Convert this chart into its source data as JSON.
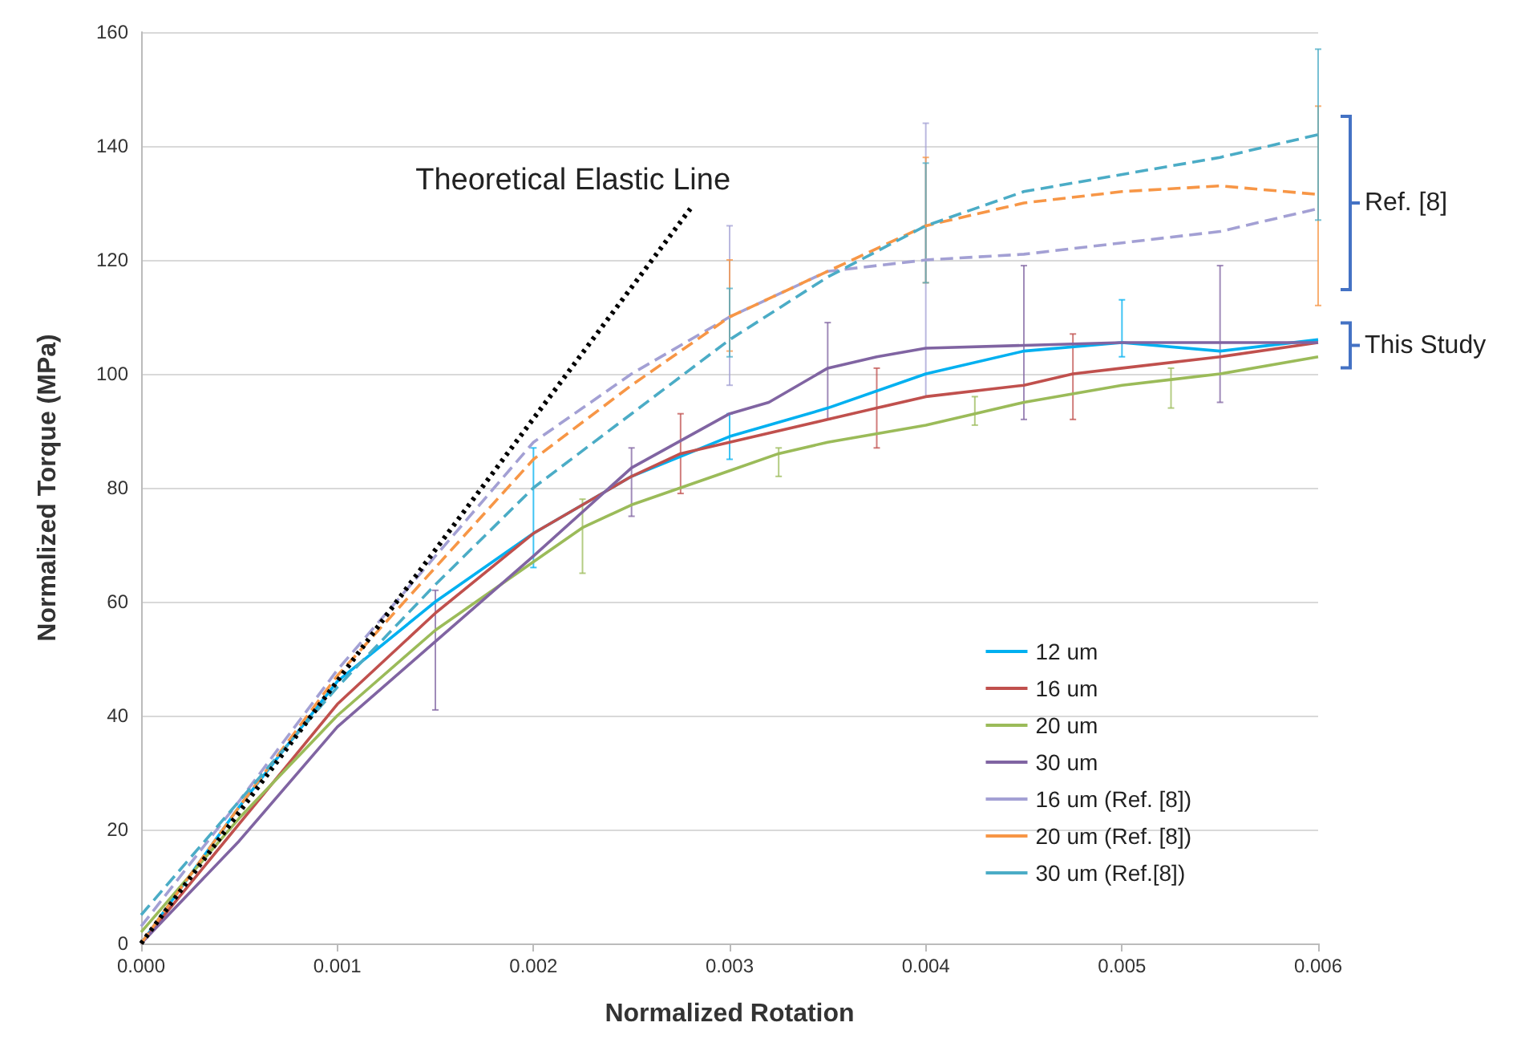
{
  "chart_data": {
    "type": "line",
    "xlabel": "Normalized Rotation",
    "ylabel": "Normalized Torque (MPa)",
    "xlim": [
      0,
      0.006
    ],
    "xticks": [
      {
        "value": 0,
        "label": "0.000"
      },
      {
        "value": 0.001,
        "label": "0.001"
      },
      {
        "value": 0.002,
        "label": "0.002"
      },
      {
        "value": 0.003,
        "label": "0.003"
      },
      {
        "value": 0.004,
        "label": "0.004"
      },
      {
        "value": 0.005,
        "label": "0.005"
      },
      {
        "value": 0.006,
        "label": "0.006"
      }
    ],
    "ylim": [
      0,
      160
    ],
    "yticks": [
      0,
      20,
      40,
      60,
      80,
      100,
      120,
      140,
      160
    ],
    "grid": "y",
    "legend": "bottom right",
    "marker": "none",
    "series": [
      {
        "name": "12 um",
        "color": "#00b0f0",
        "line_style": "solid",
        "x": [
          0,
          0.0005,
          0.001,
          0.0015,
          0.002,
          0.0025,
          0.003,
          0.0035,
          0.004,
          0.0045,
          0.005,
          0.0055,
          0.006
        ],
        "values": [
          0,
          24,
          46,
          60,
          72,
          82,
          89,
          94,
          100,
          104,
          105.5,
          104,
          106
        ],
        "errors": [
          null,
          null,
          null,
          null,
          [
            66,
            87
          ],
          null,
          [
            85,
            93
          ],
          null,
          null,
          null,
          [
            103,
            113
          ],
          null,
          null
        ]
      },
      {
        "name": "16 um",
        "color": "#c0504d",
        "line_style": "solid",
        "x": [
          0,
          0.0005,
          0.001,
          0.0015,
          0.002,
          0.0025,
          0.00275,
          0.003,
          0.0035,
          0.00375,
          0.004,
          0.0045,
          0.00475,
          0.005,
          0.0055,
          0.006
        ],
        "values": [
          0,
          21,
          42,
          58,
          72,
          82,
          86,
          88,
          92,
          94,
          96,
          98,
          100,
          101,
          103,
          105.5
        ],
        "errors": [
          null,
          null,
          null,
          null,
          null,
          null,
          [
            79,
            93
          ],
          null,
          null,
          [
            87,
            101
          ],
          null,
          null,
          [
            92,
            107
          ],
          null,
          null,
          null
        ]
      },
      {
        "name": "20 um",
        "color": "#9bbb59",
        "line_style": "solid",
        "x": [
          0,
          0.0005,
          0.001,
          0.0015,
          0.002,
          0.00225,
          0.0025,
          0.003,
          0.00325,
          0.0035,
          0.004,
          0.00425,
          0.0045,
          0.005,
          0.00525,
          0.0055,
          0.006
        ],
        "values": [
          2,
          22,
          40,
          55,
          67,
          73,
          77,
          83,
          86,
          88,
          91,
          93,
          95,
          98,
          99,
          100,
          103
        ],
        "errors": [
          null,
          null,
          null,
          null,
          null,
          [
            65,
            78
          ],
          null,
          null,
          [
            82,
            87
          ],
          null,
          null,
          [
            91,
            96
          ],
          null,
          null,
          [
            94,
            101
          ],
          null,
          null
        ]
      },
      {
        "name": "30 um",
        "color": "#8064a2",
        "line_style": "solid",
        "x": [
          0,
          0.0005,
          0.001,
          0.0015,
          0.002,
          0.0025,
          0.003,
          0.0032,
          0.0035,
          0.00375,
          0.004,
          0.0045,
          0.005,
          0.0055,
          0.006
        ],
        "values": [
          0,
          18,
          38,
          53,
          68,
          83.5,
          93,
          95,
          101,
          103,
          104.5,
          105,
          105.5,
          105.5,
          105.5
        ],
        "errors": [
          null,
          null,
          null,
          [
            41,
            62
          ],
          null,
          [
            75,
            87
          ],
          null,
          null,
          [
            92,
            109
          ],
          null,
          null,
          [
            92,
            119
          ],
          null,
          [
            95,
            119
          ],
          null
        ]
      },
      {
        "name": "16 um (Ref. [8])",
        "color": "#a3a0d4",
        "line_style": "dashed",
        "x": [
          0,
          0.0005,
          0.001,
          0.0015,
          0.002,
          0.0025,
          0.003,
          0.0035,
          0.004,
          0.0045,
          0.005,
          0.0055,
          0.006
        ],
        "values": [
          3,
          25,
          48,
          68,
          88,
          100,
          110,
          118,
          120,
          121,
          123,
          125,
          129
        ],
        "errors": [
          null,
          null,
          null,
          null,
          null,
          null,
          [
            98,
            126
          ],
          null,
          [
            96,
            144
          ],
          null,
          null,
          null,
          null
        ]
      },
      {
        "name": "20 um (Ref. [8])",
        "color": "#f79646",
        "line_style": "dashed",
        "x": [
          0,
          0.0005,
          0.001,
          0.0015,
          0.002,
          0.0025,
          0.003,
          0.0035,
          0.004,
          0.0045,
          0.005,
          0.0055,
          0.006
        ],
        "values": [
          0,
          24,
          47,
          66,
          85,
          98,
          110,
          118,
          126,
          130,
          132,
          133,
          131.5
        ],
        "errors": [
          null,
          null,
          null,
          null,
          null,
          null,
          [
            104,
            120
          ],
          null,
          [
            116,
            138
          ],
          null,
          null,
          null,
          [
            112,
            147
          ]
        ]
      },
      {
        "name": "30 um (Ref.[8])",
        "color": "#4bacc6",
        "line_style": "dashed",
        "x": [
          0,
          0.0005,
          0.001,
          0.0015,
          0.002,
          0.0025,
          0.003,
          0.0035,
          0.004,
          0.0045,
          0.005,
          0.0055,
          0.006
        ],
        "values": [
          5,
          25,
          45,
          63,
          80,
          93,
          106,
          117,
          126,
          132,
          135,
          138,
          142
        ],
        "errors": [
          null,
          null,
          null,
          null,
          null,
          null,
          [
            103,
            115
          ],
          null,
          [
            116,
            137
          ],
          null,
          null,
          null,
          [
            127,
            157
          ]
        ]
      },
      {
        "name": "Theoretical Elastic Line",
        "color": "#000000",
        "line_style": "dotted",
        "x": [
          0,
          0.0028
        ],
        "values": [
          0,
          129
        ]
      }
    ],
    "annotations": [
      {
        "text": "Ref. [8]",
        "x": 0.006,
        "y": 130
      },
      {
        "text": "This Study",
        "x": 0.006,
        "y": 105
      }
    ]
  }
}
